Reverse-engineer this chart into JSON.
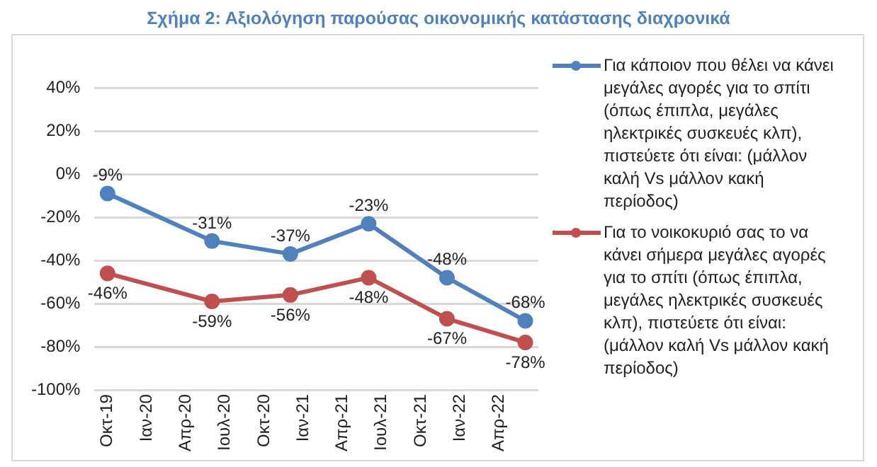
{
  "chart_data": {
    "type": "line",
    "title": "Σχήμα 2: Αξιολόγηση παρούσας οικονομικής κατάστασης διαχρονικά",
    "x": [
      "2019-10",
      "2020-06",
      "2020-12",
      "2021-06",
      "2021-12",
      "2022-06"
    ],
    "series": [
      {
        "name": "Για κάποιον που θέλει να κάνει μεγάλες αγορές για το σπίτι (όπως έπιπλα, μεγάλες ηλεκτρικές συσκευές κλπ), πιστεύετε ότι είναι: (μάλλον καλή Vs μάλλον κακή περίοδος)",
        "color": "#4f81bd",
        "values": [
          -9,
          -31,
          -37,
          -23,
          -48,
          -68
        ],
        "value_labels": [
          "-9%",
          "-31%",
          "-37%",
          "-23%",
          "-48%",
          "-68%"
        ]
      },
      {
        "name": "Για το νοικοκυριό σας το να κάνει σήμερα μεγάλες αγορές για το σπίτι (όπως έπιπλα, μεγάλες ηλεκτρικές συσκευές κλπ), πιστεύετε ότι είναι: (μάλλον καλή Vs μάλλον κακή περίοδος)",
        "color": "#c0504d",
        "values": [
          -46,
          -59,
          -56,
          -48,
          -67,
          -78
        ],
        "value_labels": [
          "-46%",
          "-59%",
          "-56%",
          "-48%",
          "-67%",
          "-78%"
        ]
      }
    ],
    "xlim": [
      "2019-09",
      "2022-07"
    ],
    "xticks": [
      {
        "value": "2019-10",
        "label": "Οκτ-19"
      },
      {
        "value": "2020-01",
        "label": "Ιαν-20"
      },
      {
        "value": "2020-04",
        "label": "Απρ-20"
      },
      {
        "value": "2020-07",
        "label": "Ιουλ-20"
      },
      {
        "value": "2020-10",
        "label": "Οκτ-20"
      },
      {
        "value": "2021-01",
        "label": "Ιαν-21"
      },
      {
        "value": "2021-04",
        "label": "Απρ-21"
      },
      {
        "value": "2021-07",
        "label": "Ιουλ-21"
      },
      {
        "value": "2021-10",
        "label": "Οκτ-21"
      },
      {
        "value": "2022-01",
        "label": "Ιαν-22"
      },
      {
        "value": "2022-04",
        "label": "Απρ-22"
      }
    ],
    "ylim": [
      -100,
      40
    ],
    "yticks": [
      {
        "value": 40,
        "label": "40%"
      },
      {
        "value": 20,
        "label": "20%"
      },
      {
        "value": 0,
        "label": "0%"
      },
      {
        "value": -20,
        "label": "-20%"
      },
      {
        "value": -40,
        "label": "-40%"
      },
      {
        "value": -60,
        "label": "-60%"
      },
      {
        "value": -80,
        "label": "-80%"
      },
      {
        "value": -100,
        "label": "-100%"
      }
    ],
    "grid": "y",
    "legend": "right",
    "marker": "circle",
    "line_style": "solid"
  }
}
